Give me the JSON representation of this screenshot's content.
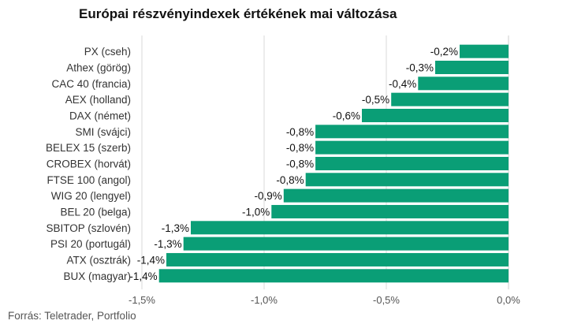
{
  "title": "Európai részvényindexek értékének mai változása",
  "source": "Forrás: Teletrader, Portfolio",
  "colors": {
    "bar": "#0a9e76",
    "grid": "#d9d9d9",
    "axis": "#cccccc"
  },
  "chart_data": {
    "type": "bar",
    "orientation": "horizontal",
    "title": "Európai részvényindexek értékének mai változása",
    "xlabel": "",
    "ylabel": "",
    "xlim": [
      -1.5,
      0.0
    ],
    "xticks": [
      -1.5,
      -1.0,
      -0.5,
      0.0
    ],
    "xtick_labels": [
      "-1,5%",
      "-1,0%",
      "-0,5%",
      "0,0%"
    ],
    "grid": true,
    "categories": [
      "PX (cseh)",
      "Athex (görög)",
      "CAC 40 (francia)",
      "AEX (holland)",
      "DAX (német)",
      "SMI (svájci)",
      "BELEX 15 (szerb)",
      "CROBEX (horvát)",
      "FTSE 100 (angol)",
      "WIG 20 (lengyel)",
      "BEL 20 (belga)",
      "SBITOP (szlovén)",
      "PSI 20 (portugál)",
      "ATX (osztrák)",
      "BUX (magyar)"
    ],
    "values": [
      -0.2,
      -0.3,
      -0.37,
      -0.48,
      -0.6,
      -0.79,
      -0.79,
      -0.79,
      -0.83,
      -0.92,
      -0.97,
      -1.3,
      -1.33,
      -1.4,
      -1.43
    ],
    "value_labels": [
      "-0,2%",
      "-0,3%",
      "-0,4%",
      "-0,5%",
      "-0,6%",
      "-0,8%",
      "-0,8%",
      "-0,8%",
      "-0,8%",
      "-0,9%",
      "-1,0%",
      "-1,3%",
      "-1,3%",
      "-1,4%",
      "-1,4%"
    ]
  }
}
